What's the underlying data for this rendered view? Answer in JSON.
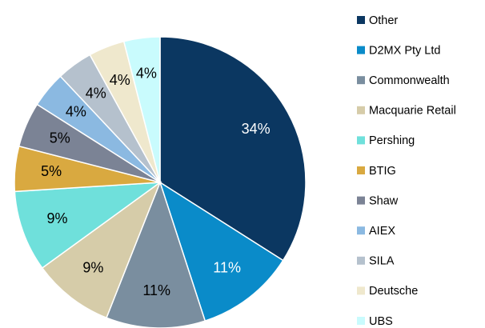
{
  "chart_data": {
    "type": "pie",
    "categories": [
      "Other",
      "D2MX Pty Ltd",
      "Commonwealth",
      "Macquarie Retail",
      "Pershing",
      "BTIG",
      "Shaw",
      "AIEX",
      "SILA",
      "Deutsche",
      "UBS"
    ],
    "values": [
      34,
      11,
      11,
      9,
      9,
      5,
      5,
      4,
      4,
      4,
      4
    ],
    "value_labels": [
      "34%",
      "11%",
      "11%",
      "9%",
      "9%",
      "5%",
      "5%",
      "4%",
      "4%",
      "4%",
      "4%"
    ],
    "colors": [
      "#0b3761",
      "#0a8bc9",
      "#7a8e9f",
      "#d6cca9",
      "#6fe0db",
      "#d9a940",
      "#7b8395",
      "#8bb9e1",
      "#b5c1cd",
      "#efe8cd",
      "#c9fbfd"
    ],
    "legend": "right"
  }
}
